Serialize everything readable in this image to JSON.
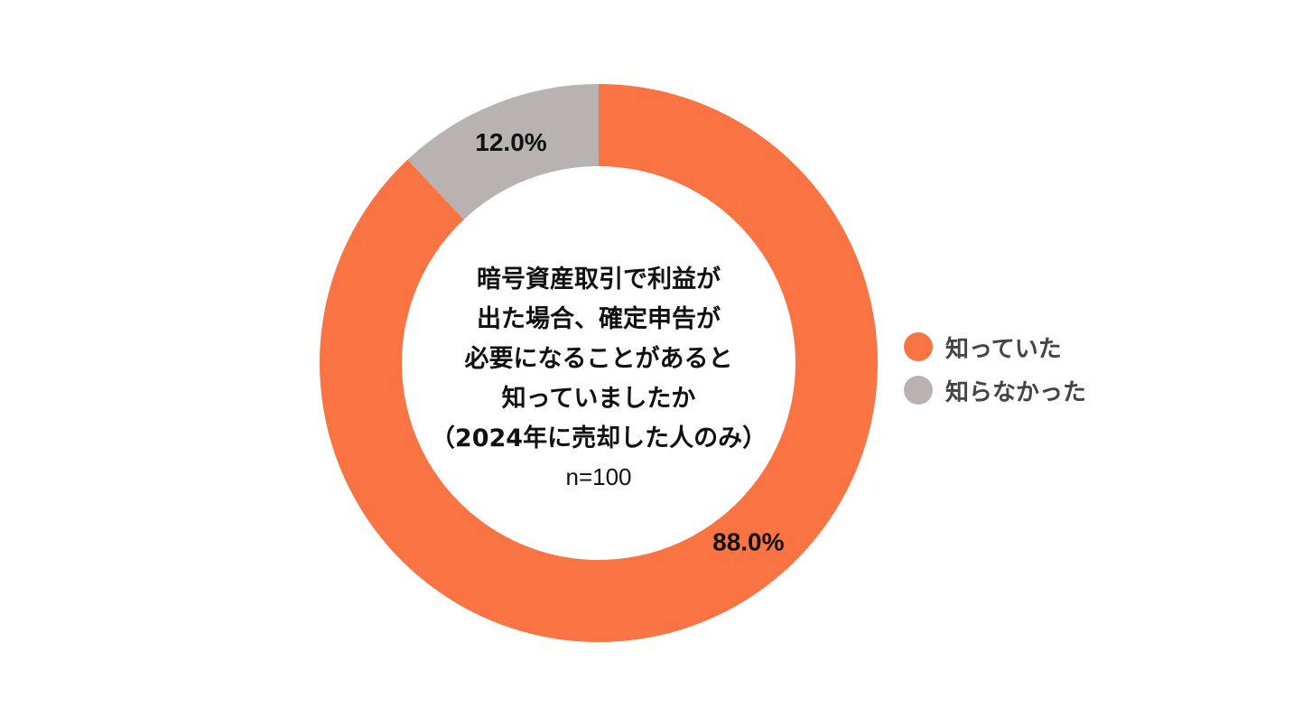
{
  "chart_data": {
    "type": "pie",
    "variant": "donut",
    "title_lines": [
      "暗号資産取引で利益が",
      "出た場合、確定申告が",
      "必要になることがあると",
      "知っていましたか",
      "（2024年に売却した人のみ）"
    ],
    "sample_size": "n=100",
    "slices": [
      {
        "label": "知っていた",
        "value": 88.0,
        "value_label": "88.0%",
        "color": "#F97442"
      },
      {
        "label": "知らなかった",
        "value": 12.0,
        "value_label": "12.0%",
        "color": "#B8B2B0"
      }
    ],
    "start": "12 o'clock",
    "direction": "clockwise",
    "legend_position": "right"
  }
}
